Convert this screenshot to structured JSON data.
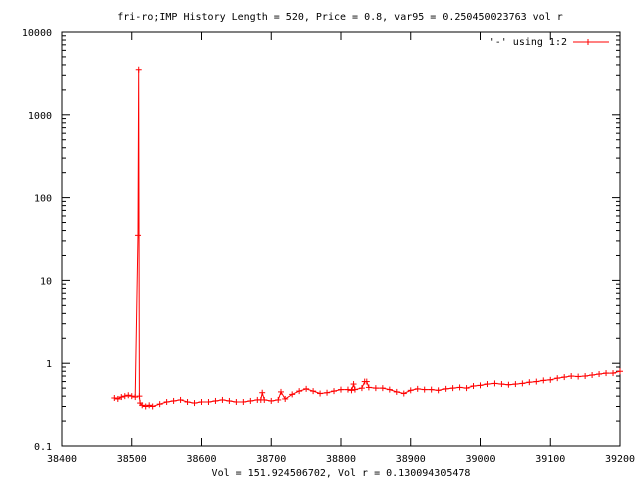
{
  "chart_data": {
    "type": "line",
    "title": "fri-ro;IMP History Length = 520, Price = 0.8, var95 = 0.250450023763 vol r",
    "xlabel": "Vol = 151.924506702, Vol r = 0.130094305478",
    "ylabel": "",
    "x_ticks": [
      "38400",
      "38500",
      "38600",
      "38700",
      "38800",
      "38900",
      "39000",
      "39100",
      "39200"
    ],
    "y_ticks": [
      "0.1",
      "1",
      "10",
      "100",
      "1000",
      "10000"
    ],
    "xlim": [
      38400,
      39200
    ],
    "ylim": [
      0.1,
      10000
    ],
    "y_scale": "log",
    "grid": false,
    "legend_position": "top-right",
    "series": [
      {
        "name": "'-' using 1:2",
        "color": "#ff0000",
        "marker": "plus",
        "x": [
          38475,
          38480,
          38485,
          38490,
          38495,
          38500,
          38505,
          38509,
          38510,
          38511,
          38512,
          38515,
          38520,
          38525,
          38530,
          38540,
          38550,
          38560,
          38570,
          38580,
          38590,
          38600,
          38610,
          38620,
          38630,
          38640,
          38650,
          38660,
          38670,
          38680,
          38685,
          38687,
          38690,
          38700,
          38710,
          38714,
          38720,
          38730,
          38740,
          38750,
          38760,
          38770,
          38780,
          38790,
          38800,
          38810,
          38815,
          38818,
          38820,
          38830,
          38834,
          38837,
          38840,
          38850,
          38860,
          38870,
          38880,
          38890,
          38900,
          38910,
          38920,
          38930,
          38940,
          38950,
          38960,
          38970,
          38980,
          38990,
          39000,
          39010,
          39020,
          39030,
          39040,
          39050,
          39060,
          39070,
          39080,
          39090,
          39100,
          39110,
          39120,
          39130,
          39140,
          39150,
          39160,
          39170,
          39180,
          39190,
          39200
        ],
        "y": [
          0.38,
          0.37,
          0.39,
          0.4,
          0.41,
          0.4,
          0.39,
          35,
          3500,
          0.4,
          0.33,
          0.31,
          0.3,
          0.31,
          0.3,
          0.32,
          0.34,
          0.35,
          0.36,
          0.34,
          0.33,
          0.34,
          0.34,
          0.35,
          0.36,
          0.35,
          0.34,
          0.34,
          0.35,
          0.36,
          0.36,
          0.44,
          0.36,
          0.35,
          0.36,
          0.45,
          0.37,
          0.42,
          0.46,
          0.49,
          0.46,
          0.43,
          0.44,
          0.46,
          0.48,
          0.48,
          0.47,
          0.56,
          0.48,
          0.5,
          0.6,
          0.6,
          0.51,
          0.5,
          0.5,
          0.48,
          0.45,
          0.43,
          0.47,
          0.49,
          0.48,
          0.48,
          0.47,
          0.49,
          0.5,
          0.51,
          0.5,
          0.53,
          0.54,
          0.56,
          0.57,
          0.56,
          0.55,
          0.56,
          0.57,
          0.59,
          0.6,
          0.62,
          0.63,
          0.66,
          0.68,
          0.7,
          0.69,
          0.7,
          0.72,
          0.74,
          0.76,
          0.76,
          0.8
        ]
      }
    ]
  }
}
